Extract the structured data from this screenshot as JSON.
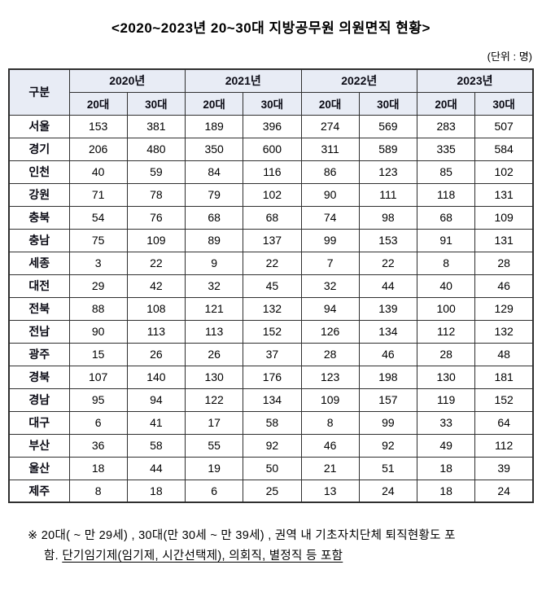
{
  "title": "<2020~2023년 20~30대 지방공무원 의원면직 현황>",
  "unit_note": "(단위 : 명)",
  "table": {
    "corner_label": "구분",
    "year_headers": [
      "2020년",
      "2021년",
      "2022년",
      "2023년"
    ],
    "age_headers": [
      "20대",
      "30대"
    ],
    "rows": [
      {
        "region": "서울",
        "values": [
          153,
          381,
          189,
          396,
          274,
          569,
          283,
          507
        ]
      },
      {
        "region": "경기",
        "values": [
          206,
          480,
          350,
          600,
          311,
          589,
          335,
          584
        ]
      },
      {
        "region": "인천",
        "values": [
          40,
          59,
          84,
          116,
          86,
          123,
          85,
          102
        ]
      },
      {
        "region": "강원",
        "values": [
          71,
          78,
          79,
          102,
          90,
          111,
          118,
          131
        ]
      },
      {
        "region": "충북",
        "values": [
          54,
          76,
          68,
          68,
          74,
          98,
          68,
          109
        ]
      },
      {
        "region": "충남",
        "values": [
          75,
          109,
          89,
          137,
          99,
          153,
          91,
          131
        ]
      },
      {
        "region": "세종",
        "values": [
          3,
          22,
          9,
          22,
          7,
          22,
          8,
          28
        ]
      },
      {
        "region": "대전",
        "values": [
          29,
          42,
          32,
          45,
          32,
          44,
          40,
          46
        ]
      },
      {
        "region": "전북",
        "values": [
          88,
          108,
          121,
          132,
          94,
          139,
          100,
          129
        ]
      },
      {
        "region": "전남",
        "values": [
          90,
          113,
          113,
          152,
          126,
          134,
          112,
          132
        ]
      },
      {
        "region": "광주",
        "values": [
          15,
          26,
          26,
          37,
          28,
          46,
          28,
          48
        ]
      },
      {
        "region": "경북",
        "values": [
          107,
          140,
          130,
          176,
          123,
          198,
          130,
          181
        ]
      },
      {
        "region": "경남",
        "values": [
          95,
          94,
          122,
          134,
          109,
          157,
          119,
          152
        ]
      },
      {
        "region": "대구",
        "values": [
          6,
          41,
          17,
          58,
          8,
          99,
          33,
          64
        ]
      },
      {
        "region": "부산",
        "values": [
          36,
          58,
          55,
          92,
          46,
          92,
          49,
          112
        ]
      },
      {
        "region": "울산",
        "values": [
          18,
          44,
          19,
          50,
          21,
          51,
          18,
          39
        ]
      },
      {
        "region": "제주",
        "values": [
          8,
          18,
          6,
          25,
          13,
          24,
          18,
          24
        ]
      }
    ]
  },
  "footnote": {
    "line1": "※ 20대( ~ 만 29세) , 30대(만 30세 ~ 만 39세) , 권역 내 기초자치단체 퇴직현황도 포",
    "line2_prefix": "함. ",
    "line2_underlined": "단기임기제(임기제, 시간선택제), 의회직, 별정직 등 포함"
  },
  "colors": {
    "header_fill": "#e8ecf5",
    "border": "#2f2f2f",
    "text": "#000000"
  }
}
